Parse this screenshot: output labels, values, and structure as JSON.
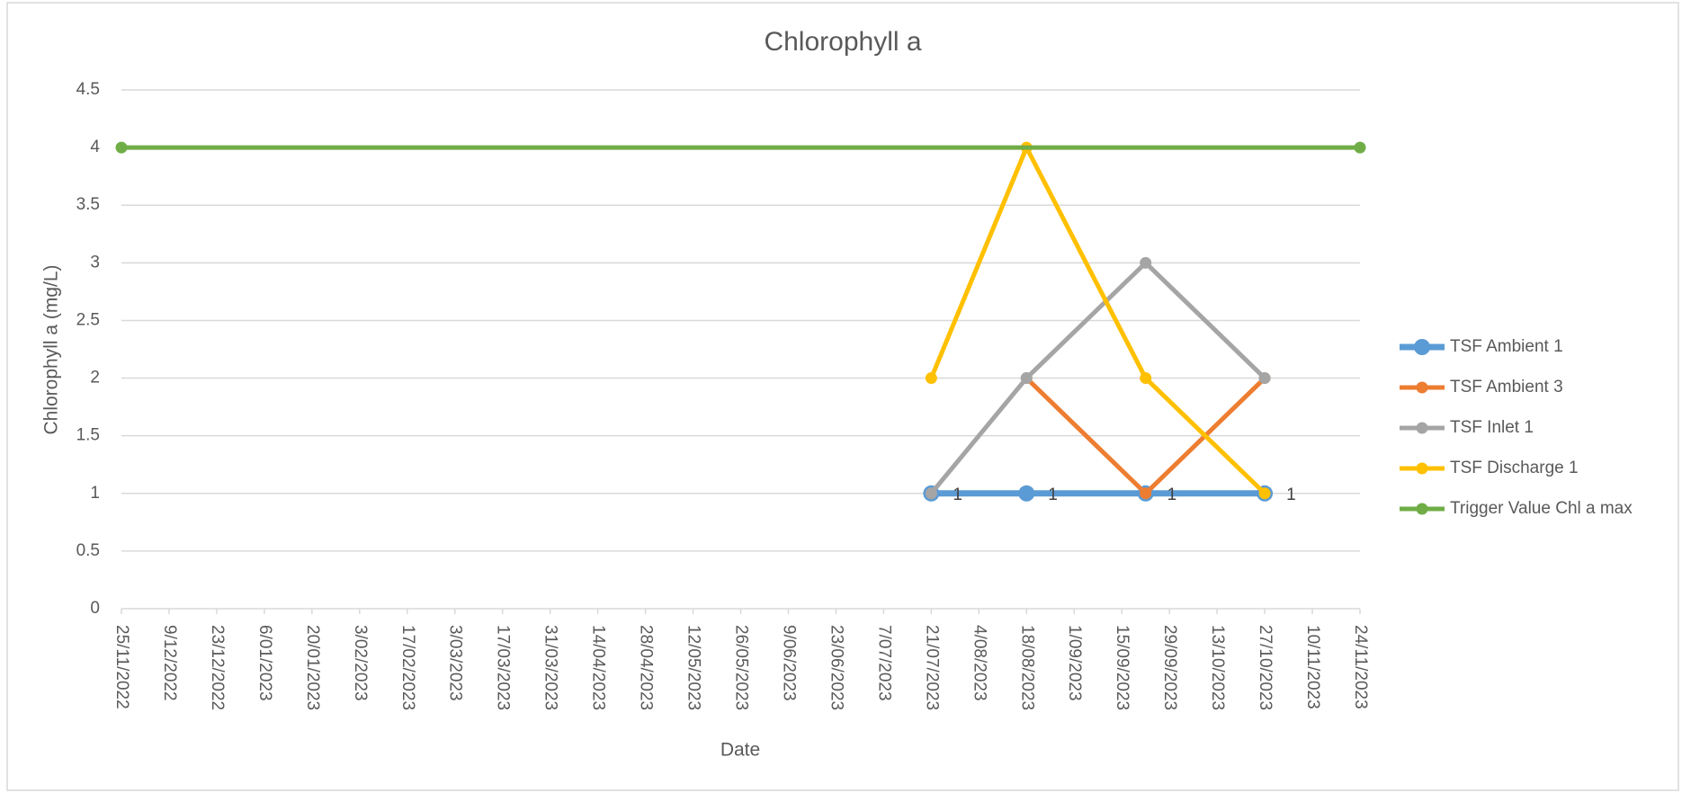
{
  "chart_data": {
    "type": "line",
    "title": "Chlorophyll a",
    "x_label": "Date",
    "y_label": "Chlorophyll a (mg/L)",
    "xlim": [
      "2022-11-25",
      "2023-11-24"
    ],
    "xticks": [
      {
        "value": "2022-11-25",
        "label": "25/11/2022"
      },
      {
        "value": "2022-12-09",
        "label": "9/12/2022"
      },
      {
        "value": "2022-12-23",
        "label": "23/12/2022"
      },
      {
        "value": "2023-01-06",
        "label": "6/01/2023"
      },
      {
        "value": "2023-01-20",
        "label": "20/01/2023"
      },
      {
        "value": "2023-02-03",
        "label": "3/02/2023"
      },
      {
        "value": "2023-02-17",
        "label": "17/02/2023"
      },
      {
        "value": "2023-03-03",
        "label": "3/03/2023"
      },
      {
        "value": "2023-03-17",
        "label": "17/03/2023"
      },
      {
        "value": "2023-03-31",
        "label": "31/03/2023"
      },
      {
        "value": "2023-04-14",
        "label": "14/04/2023"
      },
      {
        "value": "2023-04-28",
        "label": "28/04/2023"
      },
      {
        "value": "2023-05-12",
        "label": "12/05/2023"
      },
      {
        "value": "2023-05-26",
        "label": "26/05/2023"
      },
      {
        "value": "2023-06-09",
        "label": "9/06/2023"
      },
      {
        "value": "2023-06-23",
        "label": "23/06/2023"
      },
      {
        "value": "2023-07-07",
        "label": "7/07/2023"
      },
      {
        "value": "2023-07-21",
        "label": "21/07/2023"
      },
      {
        "value": "2023-08-04",
        "label": "4/08/2023"
      },
      {
        "value": "2023-08-18",
        "label": "18/08/2023"
      },
      {
        "value": "2023-09-01",
        "label": "1/09/2023"
      },
      {
        "value": "2023-09-15",
        "label": "15/09/2023"
      },
      {
        "value": "2023-09-29",
        "label": "29/09/2023"
      },
      {
        "value": "2023-10-13",
        "label": "13/10/2023"
      },
      {
        "value": "2023-10-27",
        "label": "27/10/2023"
      },
      {
        "value": "2023-11-10",
        "label": "10/11/2023"
      },
      {
        "value": "2023-11-24",
        "label": "24/11/2023"
      }
    ],
    "ylim": [
      0,
      4.5
    ],
    "yticks": [
      0,
      0.5,
      1,
      1.5,
      2,
      2.5,
      3,
      3.5,
      4,
      4.5
    ],
    "grid": true,
    "legend": "right",
    "series": [
      {
        "name": "TSF Ambient 1",
        "color": "#5b9bd5",
        "data_labels": true,
        "x": [
          "2023-07-21",
          "2023-08-18",
          "2023-09-22",
          "2023-10-27"
        ],
        "values": [
          1,
          1,
          1,
          1
        ]
      },
      {
        "name": "TSF Ambient 3",
        "color": "#ed7d31",
        "x": [
          "2023-08-18",
          "2023-09-22",
          "2023-10-27"
        ],
        "values": [
          2,
          1,
          2
        ]
      },
      {
        "name": "TSF Inlet 1",
        "color": "#a5a5a5",
        "x": [
          "2023-07-21",
          "2023-08-18",
          "2023-09-22",
          "2023-10-27"
        ],
        "values": [
          1,
          2,
          3,
          2
        ]
      },
      {
        "name": "TSF Discharge 1",
        "color": "#ffc000",
        "x": [
          "2023-07-21",
          "2023-08-18",
          "2023-09-22",
          "2023-10-27"
        ],
        "values": [
          2,
          4,
          2,
          1
        ]
      },
      {
        "name": "Trigger Value Chl a max",
        "color": "#70ad47",
        "x": [
          "2022-11-25",
          "2023-11-24"
        ],
        "values": [
          4,
          4
        ]
      }
    ]
  }
}
